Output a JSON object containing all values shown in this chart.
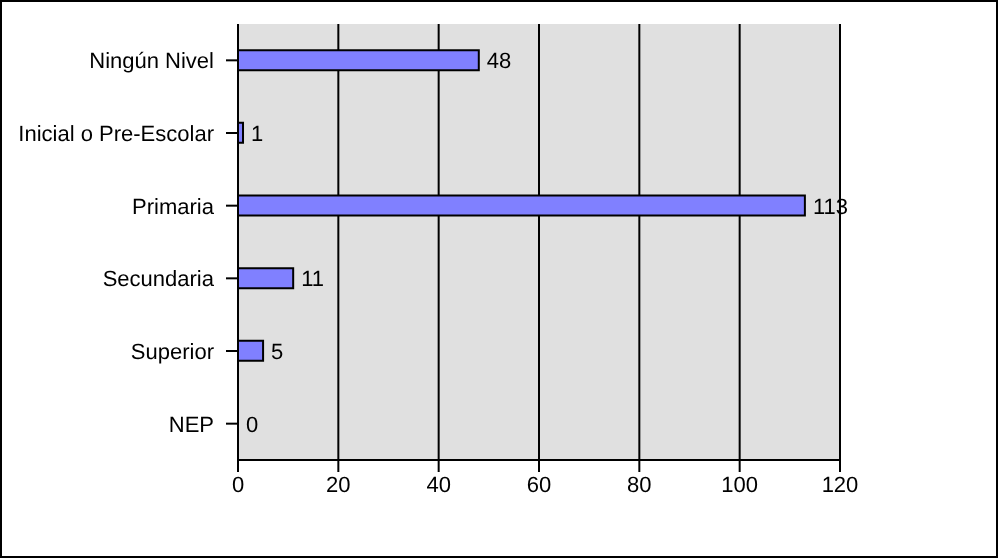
{
  "chart_data": {
    "type": "bar",
    "orientation": "horizontal",
    "categories": [
      "Ningún Nivel",
      "Inicial o Pre-Escolar",
      "Primaria",
      "Secundaria",
      "Superior",
      "NEP"
    ],
    "values": [
      48,
      1,
      113,
      11,
      5,
      0
    ],
    "color": "#8080ff",
    "xlim": [
      0,
      120
    ],
    "xticks": [
      0,
      20,
      40,
      60,
      80,
      100,
      120
    ],
    "grid": "x",
    "data_labels": true
  }
}
